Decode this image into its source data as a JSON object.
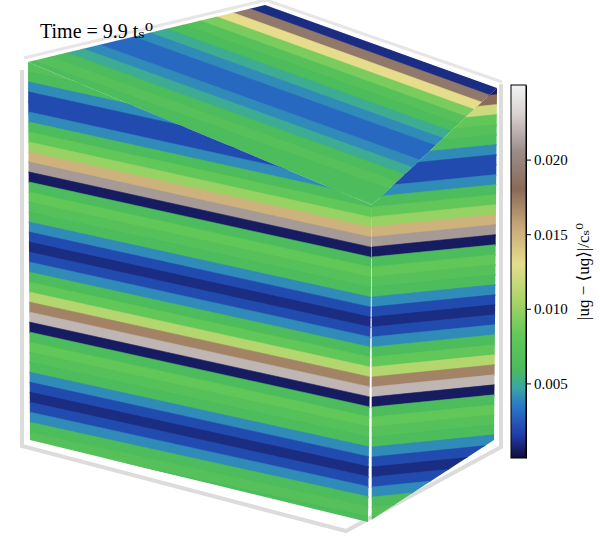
{
  "chart_data": {
    "type": "heatmap",
    "title": "Time = 9.9 tₛ⁰",
    "colorbar_label": "|uɡ − ⟨uɡ⟩|/cₛ⁰",
    "colorbar_lim": [
      0,
      0.025
    ],
    "colorbar_ticks": [
      0.005,
      {
        "value": 0.01,
        "label": "0.010"
      },
      0.015,
      {
        "value": 0.02,
        "label": "0.020"
      }
    ],
    "cells": [
      [
        0.001,
        0.019,
        0.013,
        0.009,
        0.007,
        0.006,
        0.005,
        0.004,
        0.003,
        0.003,
        0.004,
        0.005,
        0.006,
        0.007,
        0.006,
        0.006,
        0.007
      ],
      [
        0.007,
        0.006,
        0.004,
        0.002,
        0.002,
        0.004,
        0.006,
        0.008,
        0.01,
        0.015,
        0.021,
        0.0005,
        0.006,
        0.008,
        0.007,
        0.006,
        0.004,
        0.002,
        0.001,
        0.002,
        0.004,
        0.006,
        0.008,
        0.011,
        0.017,
        0.022,
        0.0005,
        0.006,
        0.008,
        0.007,
        0.006,
        0.004,
        0.002,
        0.001,
        0.002,
        0.004,
        0.006,
        0.007,
        0.006
      ],
      [
        0.0005,
        0.018,
        0.012,
        0.008,
        0.007,
        0.006,
        0.004,
        0.002,
        0.002,
        0.004,
        0.006,
        0.008,
        0.01,
        0.015,
        0.021,
        0.0005,
        0.006,
        0.008,
        0.007,
        0.006,
        0.004,
        0.002,
        0.001,
        0.002,
        0.004,
        0.006,
        0.008,
        0.011,
        0.017,
        0.022,
        0.0005,
        0.006,
        0.008,
        0.007,
        0.006,
        0.004,
        0.002,
        0.001,
        0.002,
        0.004,
        0.006,
        0.007,
        0.006
      ]
    ]
  }
}
